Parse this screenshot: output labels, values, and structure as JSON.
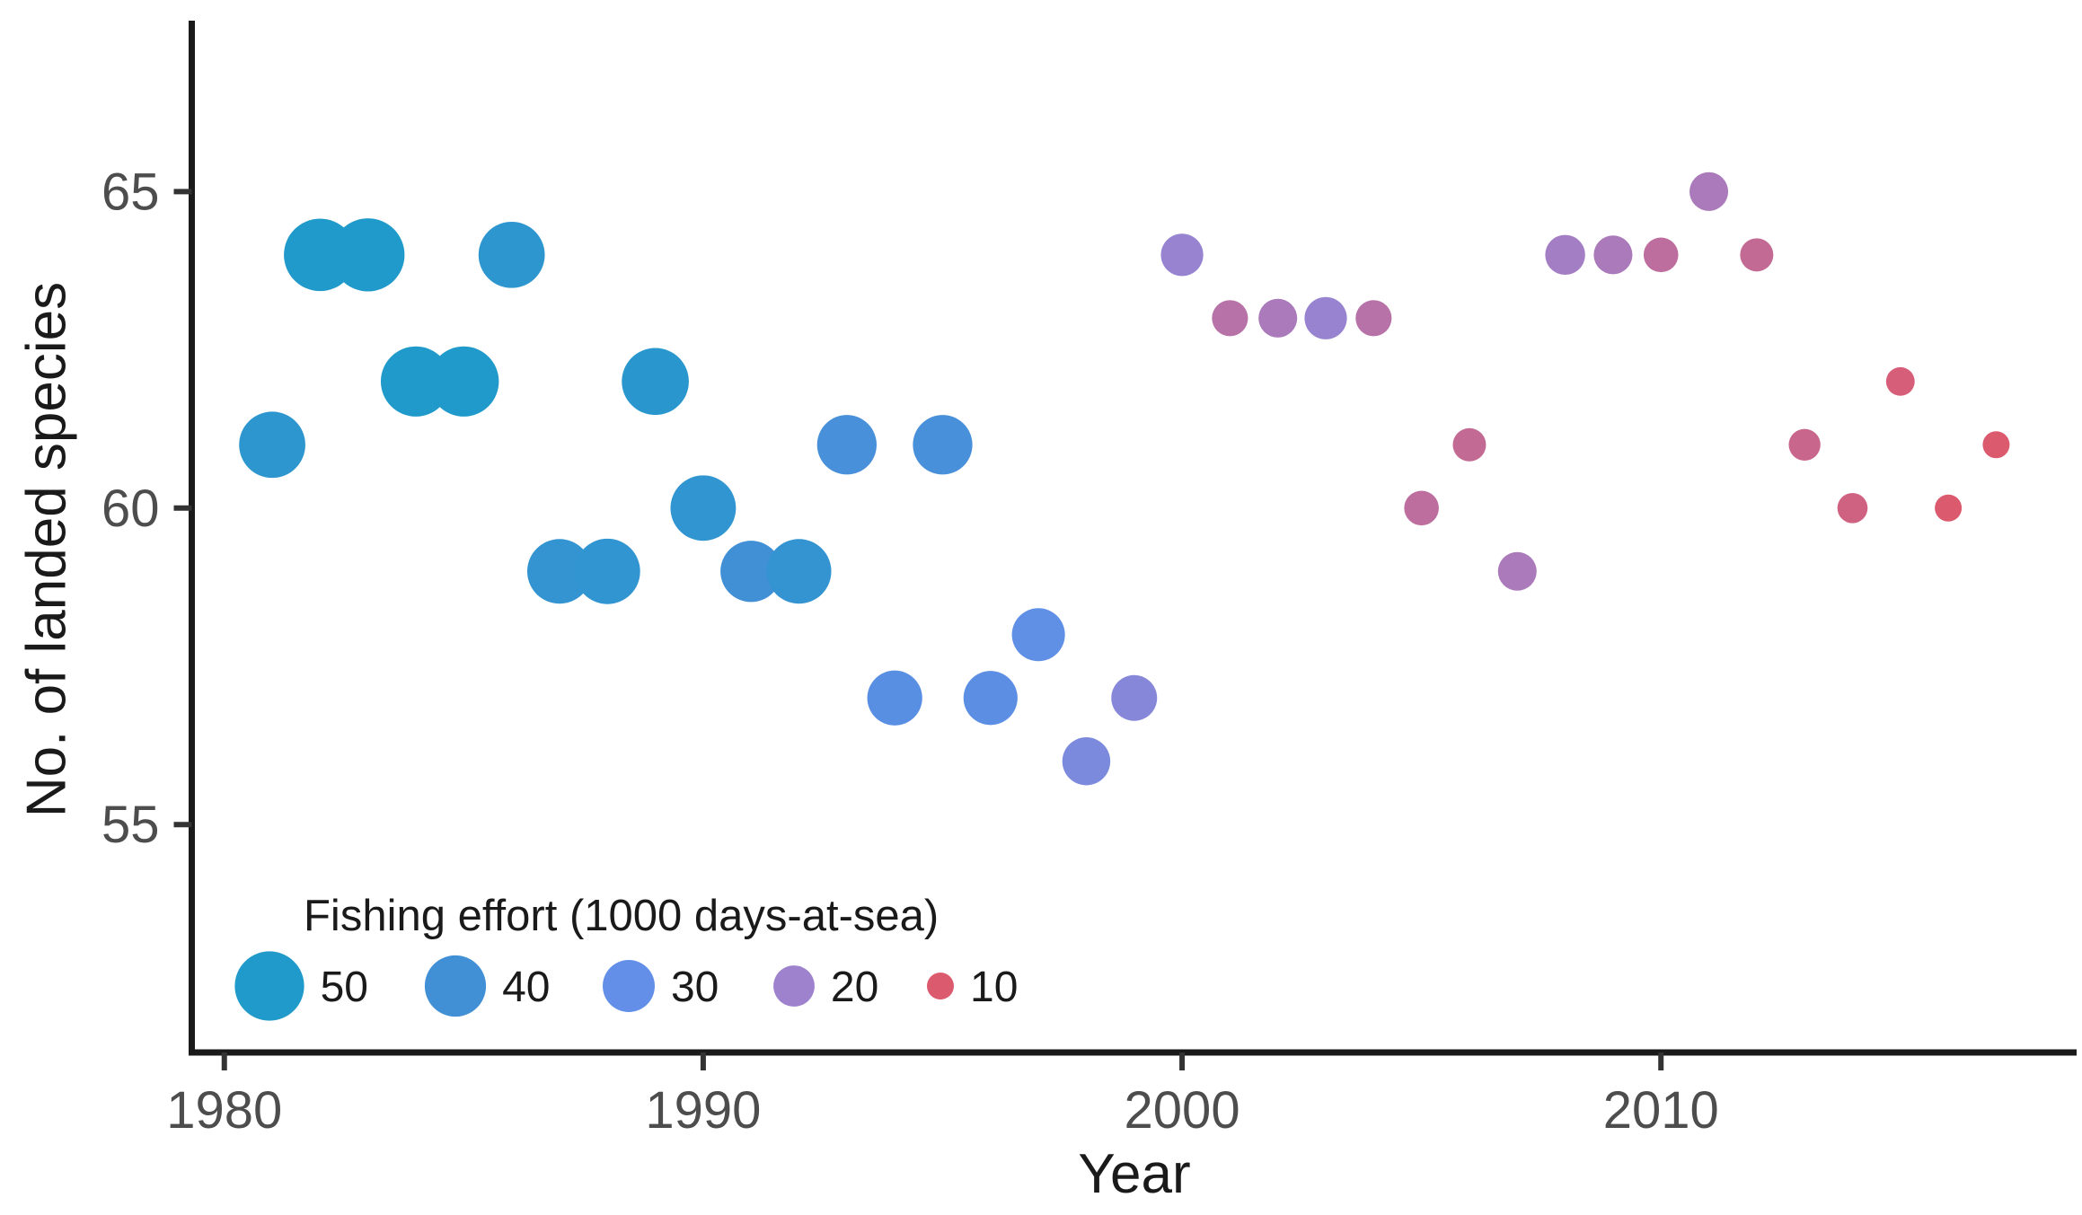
{
  "chart_data": {
    "type": "scatter",
    "title": "",
    "xlabel": "Year",
    "ylabel": "No. of landed species",
    "x_ticks": [
      1980,
      1990,
      2000,
      2010
    ],
    "y_ticks": [
      55,
      60,
      65
    ],
    "xlim": [
      1979.32,
      2018.68
    ],
    "ylim": [
      51.4,
      67.7
    ],
    "grid": "off",
    "legend": {
      "title": "Fishing effort (1000 days-at-sea)",
      "position": "inside-bottom-left",
      "sizes": [
        50,
        40,
        30,
        20,
        10
      ]
    },
    "size_scale": {
      "variable": "effort",
      "domain": [
        10,
        55
      ],
      "radius_px": [
        15,
        40.7
      ]
    },
    "color_scale": {
      "variable": "effort",
      "stops": [
        [
          10,
          "#dc5a6e"
        ],
        [
          20,
          "#9e82cd"
        ],
        [
          30,
          "#638fe8"
        ],
        [
          40,
          "#4190d6"
        ],
        [
          50,
          "#1f9aca"
        ]
      ]
    },
    "colors": {
      "axis": "#1a1a1a",
      "tick_mark": "#333333",
      "tick_label": "#4d4d4d",
      "background": "#ffffff"
    },
    "points": [
      {
        "year": 1981,
        "species": 61,
        "effort": 46
      },
      {
        "year": 1982,
        "species": 64,
        "effort": 54
      },
      {
        "year": 1983,
        "species": 64,
        "effort": 55
      },
      {
        "year": 1984,
        "species": 62,
        "effort": 51
      },
      {
        "year": 1985,
        "species": 62,
        "effort": 51
      },
      {
        "year": 1986,
        "species": 64,
        "effort": 46
      },
      {
        "year": 1987,
        "species": 59,
        "effort": 44
      },
      {
        "year": 1988,
        "species": 59,
        "effort": 45
      },
      {
        "year": 1989,
        "species": 62,
        "effort": 47
      },
      {
        "year": 1990,
        "species": 60,
        "effort": 45
      },
      {
        "year": 1991,
        "species": 59,
        "effort": 40
      },
      {
        "year": 1992,
        "species": 59,
        "effort": 44
      },
      {
        "year": 1993,
        "species": 61,
        "effort": 38
      },
      {
        "year": 1994,
        "species": 57,
        "effort": 33
      },
      {
        "year": 1995,
        "species": 61,
        "effort": 38
      },
      {
        "year": 1996,
        "species": 57,
        "effort": 32
      },
      {
        "year": 1997,
        "species": 58,
        "effort": 31
      },
      {
        "year": 1998,
        "species": 56,
        "effort": 26
      },
      {
        "year": 1999,
        "species": 57,
        "effort": 24
      },
      {
        "year": 2000,
        "species": 64,
        "effort": 21
      },
      {
        "year": 2001,
        "species": 63,
        "effort": 16
      },
      {
        "year": 2002,
        "species": 63,
        "effort": 18
      },
      {
        "year": 2003,
        "species": 63,
        "effort": 21
      },
      {
        "year": 2004,
        "species": 63,
        "effort": 16
      },
      {
        "year": 2005,
        "species": 60,
        "effort": 15
      },
      {
        "year": 2006,
        "species": 61,
        "effort": 14
      },
      {
        "year": 2007,
        "species": 59,
        "effort": 18
      },
      {
        "year": 2008,
        "species": 64,
        "effort": 19
      },
      {
        "year": 2009,
        "species": 64,
        "effort": 18
      },
      {
        "year": 2010,
        "species": 64,
        "effort": 15
      },
      {
        "year": 2011,
        "species": 65,
        "effort": 18
      },
      {
        "year": 2012,
        "species": 64,
        "effort": 14
      },
      {
        "year": 2013,
        "species": 61,
        "effort": 13
      },
      {
        "year": 2014,
        "species": 60,
        "effort": 12
      },
      {
        "year": 2015,
        "species": 62,
        "effort": 11
      },
      {
        "year": 2016,
        "species": 60,
        "effort": 10
      },
      {
        "year": 2017,
        "species": 61,
        "effort": 10
      }
    ]
  }
}
